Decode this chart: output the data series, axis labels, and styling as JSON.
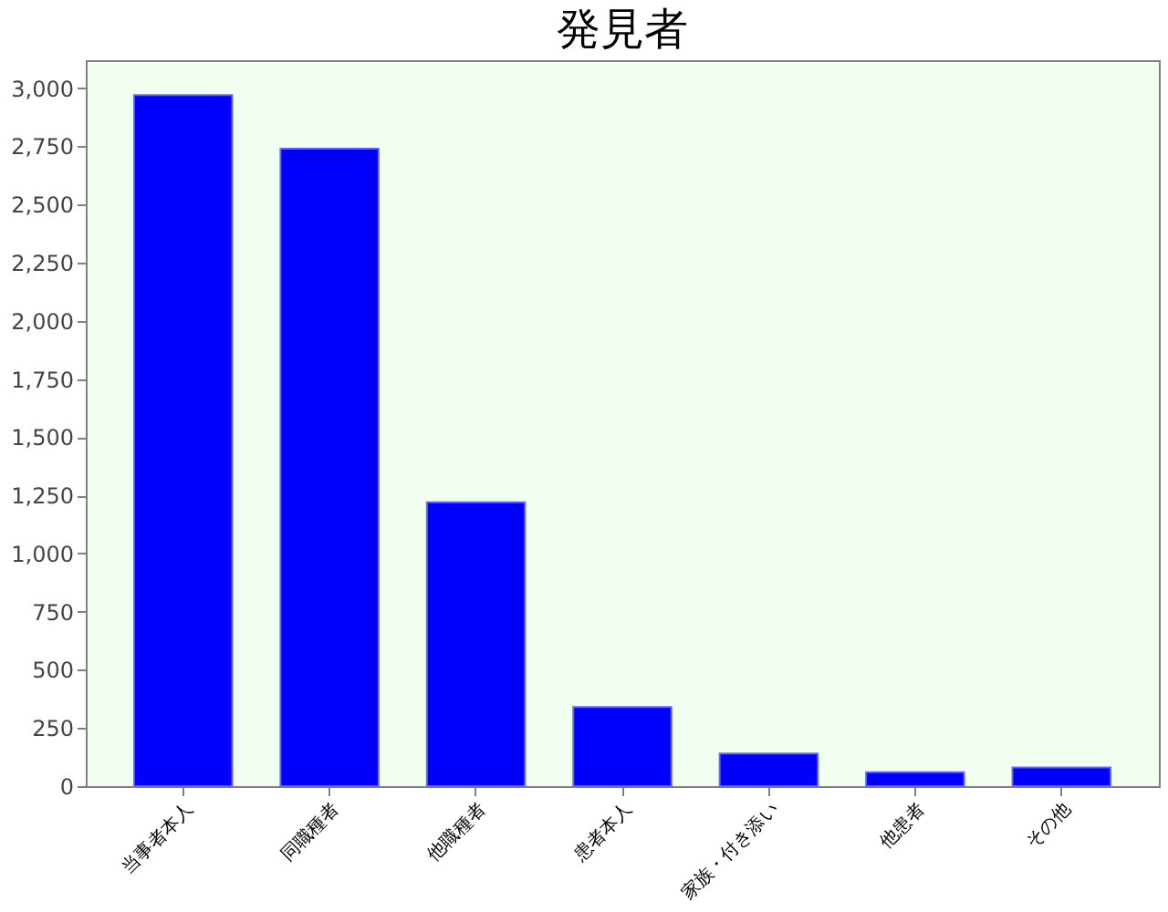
{
  "chart_data": {
    "type": "bar",
    "title": "発見者",
    "categories": [
      "当事者本人",
      "同職種者",
      "他職種者",
      "患者本人",
      "家族・付き添い",
      "他患者",
      "その他"
    ],
    "values": [
      2970,
      2740,
      1220,
      340,
      140,
      60,
      80
    ],
    "color": "#0000ff",
    "ylim": [
      0,
      3120
    ],
    "yticks": [
      0,
      250,
      500,
      750,
      {
        "value": 1000,
        "label": "1,000"
      },
      {
        "value": 1250,
        "label": "1,250"
      },
      {
        "value": 1500,
        "label": "1,500"
      },
      {
        "value": 1750,
        "label": "1,750"
      },
      {
        "value": 2000,
        "label": "2,000"
      },
      {
        "value": 2250,
        "label": "2,250"
      },
      {
        "value": 2500,
        "label": "2,500"
      },
      {
        "value": 2750,
        "label": "2,750"
      },
      {
        "value": 3000,
        "label": "3,000"
      }
    ],
    "grid": false
  }
}
